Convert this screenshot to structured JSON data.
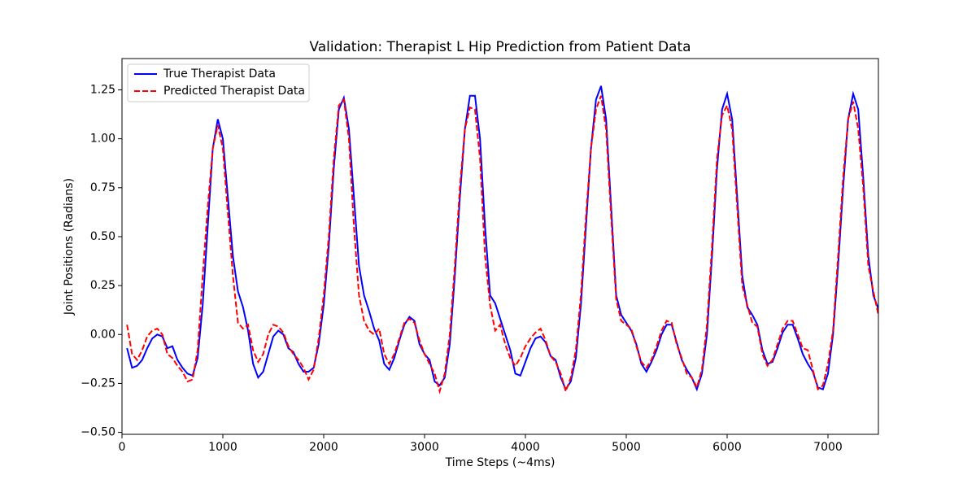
{
  "chart_data": {
    "type": "line",
    "title": "Validation: Therapist L Hip Prediction from Patient Data",
    "xlabel": "Time Steps (~4ms)",
    "ylabel": "Joint Positions (Radians)",
    "xlim": [
      0,
      7500
    ],
    "ylim": [
      -0.51,
      1.41
    ],
    "xticks": [
      0,
      1000,
      2000,
      3000,
      4000,
      5000,
      6000,
      7000
    ],
    "yticks": [
      {
        "value": -0.5,
        "label": "−0.50"
      },
      {
        "value": -0.25,
        "label": "−0.25"
      },
      {
        "value": 0,
        "label": "0.00"
      },
      {
        "value": 0.25,
        "label": "0.25"
      },
      {
        "value": 0.5,
        "label": "0.50"
      },
      {
        "value": 0.75,
        "label": "0.75"
      },
      {
        "value": 1,
        "label": "1.00"
      },
      {
        "value": 1.25,
        "label": "1.25"
      }
    ],
    "legend": "upper left",
    "x": [
      50,
      100,
      150,
      200,
      250,
      300,
      350,
      400,
      450,
      500,
      550,
      600,
      650,
      700,
      750,
      800,
      850,
      900,
      950,
      1000,
      1050,
      1100,
      1150,
      1200,
      1250,
      1300,
      1350,
      1400,
      1450,
      1500,
      1550,
      1600,
      1650,
      1700,
      1750,
      1800,
      1850,
      1900,
      1950,
      2000,
      2050,
      2100,
      2150,
      2200,
      2250,
      2300,
      2350,
      2400,
      2450,
      2500,
      2550,
      2600,
      2650,
      2700,
      2750,
      2800,
      2850,
      2900,
      2950,
      3000,
      3050,
      3100,
      3150,
      3200,
      3250,
      3300,
      3350,
      3400,
      3450,
      3500,
      3550,
      3600,
      3650,
      3700,
      3750,
      3800,
      3850,
      3900,
      3950,
      4000,
      4050,
      4100,
      4150,
      4200,
      4250,
      4300,
      4350,
      4400,
      4450,
      4500,
      4550,
      4600,
      4650,
      4700,
      4750,
      4800,
      4850,
      4900,
      4950,
      5000,
      5050,
      5100,
      5150,
      5200,
      5250,
      5300,
      5350,
      5400,
      5450,
      5500,
      5550,
      5600,
      5650,
      5700,
      5750,
      5800,
      5850,
      5900,
      5950,
      6000,
      6050,
      6100,
      6150,
      6200,
      6250,
      6300,
      6350,
      6400,
      6450,
      6500,
      6550,
      6600,
      6650,
      6700,
      6750,
      6800,
      6850,
      6900,
      6950,
      7000,
      7050,
      7100,
      7150,
      7200,
      7250,
      7300,
      7350,
      7400,
      7450,
      7500
    ],
    "series": [
      {
        "name": "True Therapist Data",
        "color": "#0000ff",
        "linestyle": "solid",
        "values": [
          -0.07,
          -0.17,
          -0.16,
          -0.13,
          -0.07,
          -0.02,
          0.0,
          -0.01,
          -0.07,
          -0.06,
          -0.13,
          -0.17,
          -0.2,
          -0.21,
          -0.12,
          0.15,
          0.55,
          0.95,
          1.1,
          1.0,
          0.7,
          0.4,
          0.22,
          0.14,
          0.02,
          -0.15,
          -0.22,
          -0.19,
          -0.1,
          -0.01,
          0.02,
          0.0,
          -0.07,
          -0.09,
          -0.15,
          -0.19,
          -0.19,
          -0.17,
          -0.05,
          0.15,
          0.45,
          0.85,
          1.15,
          1.21,
          1.05,
          0.7,
          0.35,
          0.2,
          0.12,
          0.03,
          -0.03,
          -0.15,
          -0.18,
          -0.12,
          -0.03,
          0.05,
          0.09,
          0.07,
          -0.05,
          -0.1,
          -0.13,
          -0.24,
          -0.26,
          -0.22,
          -0.05,
          0.3,
          0.7,
          1.05,
          1.22,
          1.22,
          1.0,
          0.55,
          0.2,
          0.16,
          0.08,
          0.0,
          -0.08,
          -0.2,
          -0.21,
          -0.14,
          -0.07,
          -0.02,
          -0.01,
          -0.04,
          -0.11,
          -0.13,
          -0.22,
          -0.28,
          -0.24,
          -0.12,
          0.15,
          0.55,
          0.95,
          1.2,
          1.27,
          1.1,
          0.65,
          0.2,
          0.1,
          0.06,
          0.02,
          -0.05,
          -0.15,
          -0.19,
          -0.14,
          -0.08,
          0.0,
          0.05,
          0.05,
          -0.04,
          -0.13,
          -0.18,
          -0.22,
          -0.28,
          -0.2,
          0.0,
          0.4,
          0.85,
          1.15,
          1.23,
          1.1,
          0.7,
          0.3,
          0.14,
          0.1,
          0.05,
          -0.08,
          -0.15,
          -0.14,
          -0.07,
          0.01,
          0.05,
          0.05,
          -0.02,
          -0.1,
          -0.15,
          -0.19,
          -0.27,
          -0.28,
          -0.2,
          0.0,
          0.35,
          0.75,
          1.1,
          1.23,
          1.15,
          0.8,
          0.4,
          0.2,
          0.13
        ]
      },
      {
        "name": "Predicted Therapist Data",
        "color": "#ff0000",
        "linestyle": "dashed",
        "values": [
          0.05,
          -0.1,
          -0.13,
          -0.08,
          -0.01,
          0.02,
          0.03,
          0.0,
          -0.1,
          -0.12,
          -0.16,
          -0.19,
          -0.24,
          -0.23,
          -0.08,
          0.3,
          0.65,
          0.95,
          1.07,
          0.95,
          0.62,
          0.3,
          0.06,
          0.03,
          0.05,
          -0.08,
          -0.14,
          -0.1,
          0.0,
          0.05,
          0.04,
          0.01,
          -0.06,
          -0.1,
          -0.13,
          -0.17,
          -0.23,
          -0.18,
          -0.02,
          0.2,
          0.5,
          0.9,
          1.17,
          1.2,
          1.0,
          0.55,
          0.2,
          0.07,
          0.02,
          0.0,
          0.03,
          -0.1,
          -0.15,
          -0.1,
          -0.02,
          0.06,
          0.08,
          0.06,
          -0.03,
          -0.1,
          -0.15,
          -0.2,
          -0.29,
          -0.2,
          0.0,
          0.35,
          0.75,
          1.05,
          1.16,
          1.15,
          0.9,
          0.4,
          0.15,
          0.02,
          0.05,
          -0.05,
          -0.12,
          -0.16,
          -0.12,
          -0.06,
          -0.02,
          0.01,
          0.03,
          -0.03,
          -0.11,
          -0.14,
          -0.2,
          -0.29,
          -0.22,
          -0.08,
          0.2,
          0.6,
          0.95,
          1.15,
          1.22,
          1.05,
          0.6,
          0.18,
          0.07,
          0.05,
          0.03,
          -0.06,
          -0.14,
          -0.17,
          -0.13,
          -0.06,
          0.02,
          0.07,
          0.06,
          -0.05,
          -0.12,
          -0.2,
          -0.22,
          -0.27,
          -0.18,
          0.05,
          0.45,
          0.9,
          1.12,
          1.17,
          1.05,
          0.65,
          0.25,
          0.15,
          0.06,
          0.04,
          -0.1,
          -0.16,
          -0.13,
          -0.05,
          0.03,
          0.07,
          0.07,
          0.0,
          -0.07,
          -0.08,
          -0.18,
          -0.28,
          -0.26,
          -0.15,
          0.02,
          0.4,
          0.8,
          1.1,
          1.19,
          1.05,
          0.75,
          0.35,
          0.22,
          0.1
        ]
      }
    ]
  }
}
